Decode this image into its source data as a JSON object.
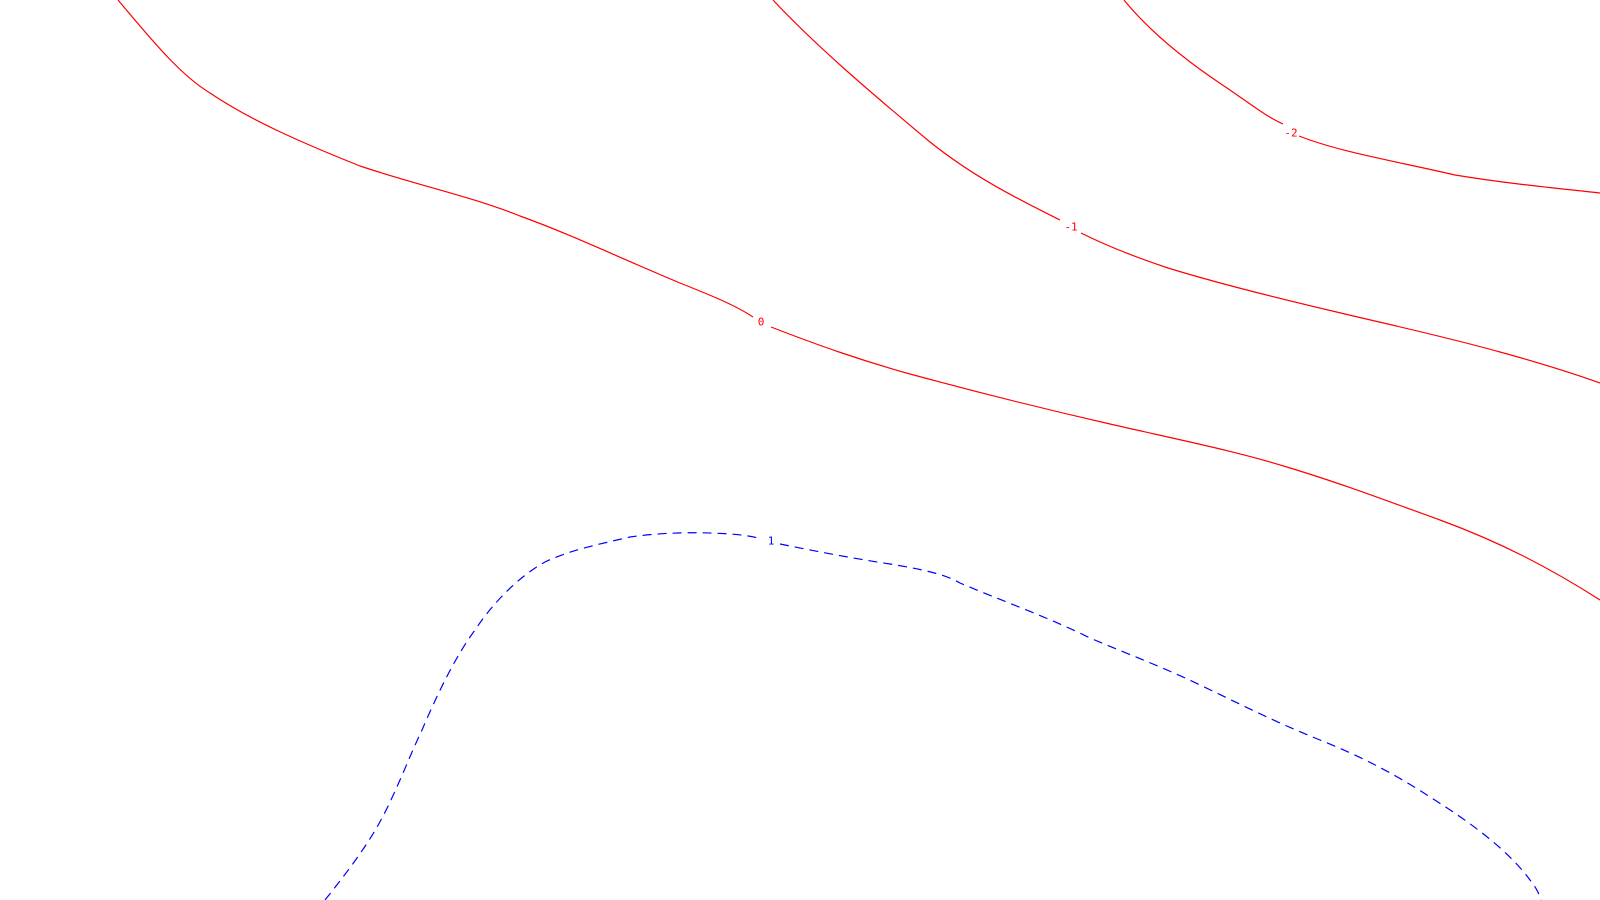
{
  "chart_data": {
    "type": "contour",
    "title": "",
    "xlabel": "",
    "ylabel": "",
    "grid": false,
    "legend": "none",
    "levels": [
      {
        "value": "-2",
        "color": "#ff0000",
        "style": "solid"
      },
      {
        "value": "-1",
        "color": "#ff0000",
        "style": "solid"
      },
      {
        "value": "0",
        "color": "#ff0000",
        "style": "solid"
      },
      {
        "value": "1",
        "color": "#0000ff",
        "style": "dashed"
      }
    ]
  }
}
